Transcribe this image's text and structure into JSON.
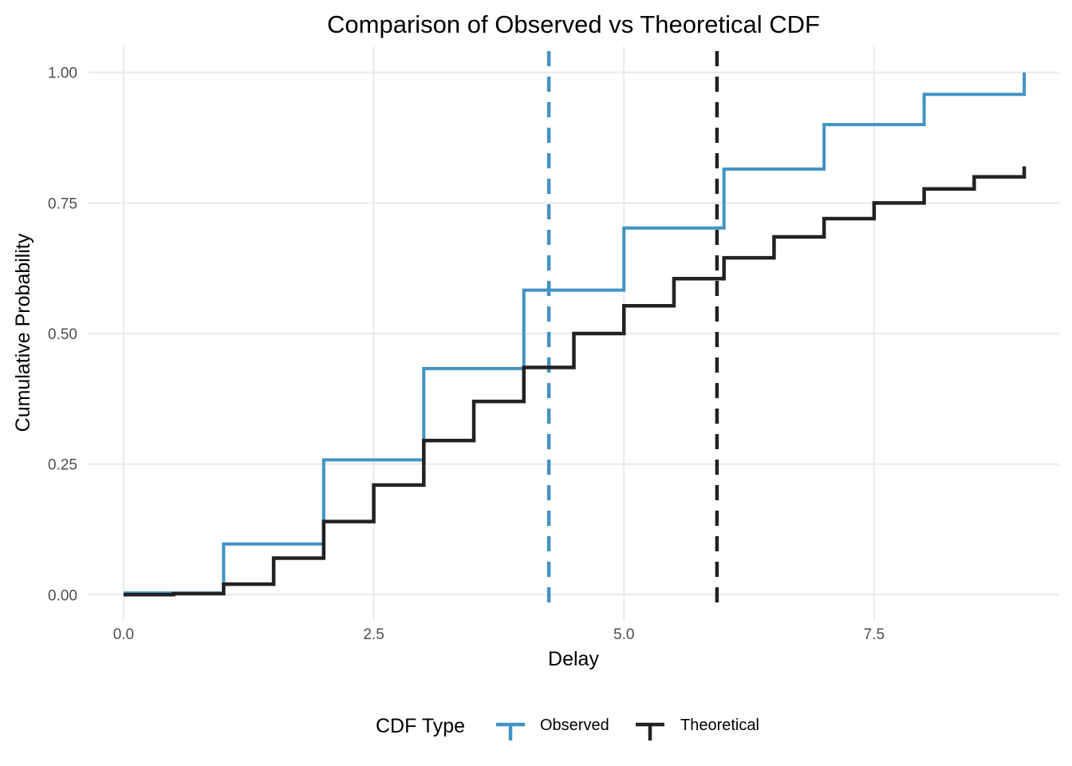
{
  "chart_data": {
    "type": "line",
    "title": "Comparison of Observed vs Theoretical CDF",
    "xlabel": "Delay",
    "ylabel": "Cumulative Probability",
    "xlim": [
      -0.35,
      9.35
    ],
    "ylim": [
      -0.05,
      1.05
    ],
    "x_ticks": [
      0,
      2.5,
      5,
      7.5
    ],
    "x_tick_labels": [
      "0.0",
      "2.5",
      "5.0",
      "7.5"
    ],
    "y_ticks": [
      0,
      0.25,
      0.5,
      0.75,
      1
    ],
    "y_tick_labels": [
      "0.00",
      "0.25",
      "0.50",
      "0.75",
      "1.00"
    ],
    "grid": true,
    "legend_position": "bottom",
    "legend_title": "CDF Type",
    "series": [
      {
        "name": "Observed",
        "color": "#4393c3",
        "step": true,
        "x": [
          0,
          1,
          2,
          3,
          4,
          5,
          6,
          7,
          8,
          9
        ],
        "y": [
          0.003,
          0.097,
          0.258,
          0.433,
          0.583,
          0.702,
          0.815,
          0.9,
          0.958,
          1.0
        ]
      },
      {
        "name": "Theoretical",
        "color": "#222222",
        "step": true,
        "x": [
          0,
          0.5,
          1,
          1.5,
          2,
          2.5,
          3,
          3.5,
          4,
          4.5,
          5,
          5.5,
          6,
          6.5,
          7,
          7.5,
          8,
          8.5,
          9
        ],
        "y": [
          0,
          0.002,
          0.02,
          0.07,
          0.14,
          0.21,
          0.295,
          0.37,
          0.435,
          0.5,
          0.553,
          0.605,
          0.645,
          0.685,
          0.72,
          0.75,
          0.777,
          0.8,
          0.82
        ]
      }
    ],
    "vlines": [
      {
        "series": "Observed",
        "x": 4.25,
        "color": "#4393c3",
        "style": "dashed"
      },
      {
        "series": "Theoretical",
        "x": 5.93,
        "color": "#222222",
        "style": "dashed"
      }
    ]
  }
}
